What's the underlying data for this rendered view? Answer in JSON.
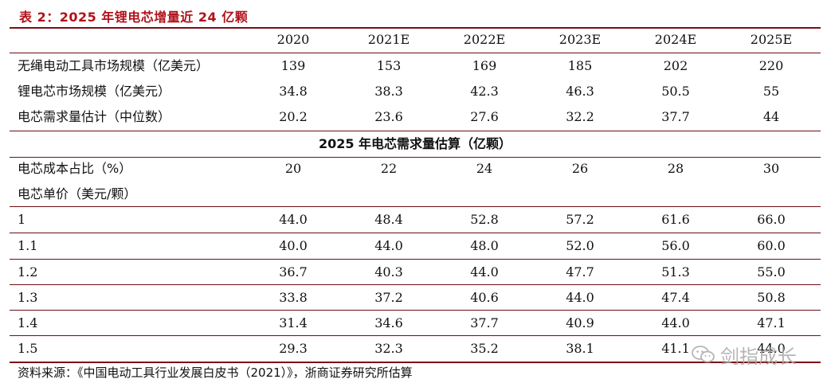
{
  "caption": "表 2：2025 年锂电芯增量近 24 亿颗",
  "years": [
    "2020",
    "2021E",
    "2022E",
    "2023E",
    "2024E",
    "2025E"
  ],
  "market_rows": [
    {
      "label": "无绳电动工具市场规模（亿美元）",
      "values": [
        "139",
        "153",
        "169",
        "185",
        "202",
        "220"
      ]
    },
    {
      "label": "锂电芯市场规模（亿美元）",
      "values": [
        "34.8",
        "38.3",
        "42.3",
        "46.3",
        "50.5",
        "55"
      ]
    },
    {
      "label": "电芯需求量估计（中位数）",
      "values": [
        "20.2",
        "23.6",
        "27.6",
        "32.2",
        "37.7",
        "44"
      ]
    }
  ],
  "section_title": "2025 年电芯需求量估算（亿颗）",
  "cost_share": {
    "label": "电芯成本占比（%）",
    "values": [
      "20",
      "22",
      "24",
      "26",
      "28",
      "30"
    ]
  },
  "unit_price_label": "电芯单价（美元/颗）",
  "price_rows": [
    {
      "label": "1",
      "values": [
        "44.0",
        "48.4",
        "52.8",
        "57.2",
        "61.6",
        "66.0"
      ]
    },
    {
      "label": "1.1",
      "values": [
        "40.0",
        "44.0",
        "48.0",
        "52.0",
        "56.0",
        "60.0"
      ]
    },
    {
      "label": "1.2",
      "values": [
        "36.7",
        "40.3",
        "44.0",
        "47.7",
        "51.3",
        "55.0"
      ]
    },
    {
      "label": "1.3",
      "values": [
        "33.8",
        "37.2",
        "40.6",
        "44.0",
        "47.4",
        "50.8"
      ]
    },
    {
      "label": "1.4",
      "values": [
        "31.4",
        "34.6",
        "37.7",
        "40.9",
        "44.0",
        "47.1"
      ]
    },
    {
      "label": "1.5",
      "values": [
        "29.3",
        "32.3",
        "35.2",
        "38.1",
        "41.1",
        "44.0"
      ]
    }
  ],
  "footer": "资料来源：《中国电动工具行业发展白皮书（2021）》，浙商证券研究所估算",
  "watermark": "剑指成长",
  "colors": {
    "caption": "#b0121b",
    "rule": "#7a1016",
    "watermark": "#a9a9a9"
  }
}
